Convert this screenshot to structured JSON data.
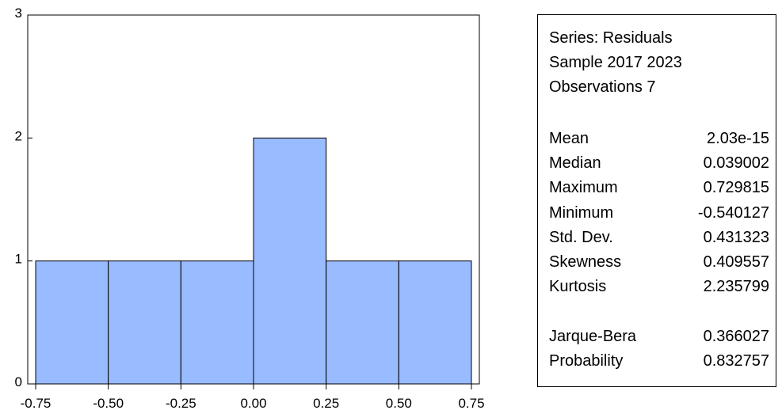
{
  "chart_data": {
    "type": "bar",
    "title": "",
    "xlabel": "",
    "ylabel": "",
    "bin_edges": [
      -0.75,
      -0.5,
      -0.25,
      0.0,
      0.25,
      0.5,
      0.75
    ],
    "counts": [
      1,
      1,
      1,
      2,
      1,
      1
    ],
    "x_ticks": [
      "-0.75",
      "-0.50",
      "-0.25",
      "0.00",
      "0.25",
      "0.50",
      "0.75"
    ],
    "y_ticks": [
      "0",
      "1",
      "2",
      "3"
    ],
    "ylim": [
      0,
      3
    ],
    "xlim": [
      -0.75,
      0.75
    ],
    "bar_color": "#99bbff",
    "grid": false
  },
  "stats": {
    "series_line": "Series: Residuals",
    "sample_line": "Sample 2017 2023",
    "observations_line": "Observations 7",
    "rows": [
      {
        "label": "Mean",
        "value": "2.03e-15"
      },
      {
        "label": "Median",
        "value": "0.039002"
      },
      {
        "label": "Maximum",
        "value": "0.729815"
      },
      {
        "label": "Minimum",
        "value": "-0.540127"
      },
      {
        "label": "Std. Dev.",
        "value": "0.431323"
      },
      {
        "label": "Skewness",
        "value": "0.409557"
      },
      {
        "label": "Kurtosis",
        "value": "2.235799"
      }
    ],
    "test_rows": [
      {
        "label": "Jarque-Bera",
        "value": "0.366027"
      },
      {
        "label": "Probability",
        "value": "0.832757"
      }
    ]
  }
}
